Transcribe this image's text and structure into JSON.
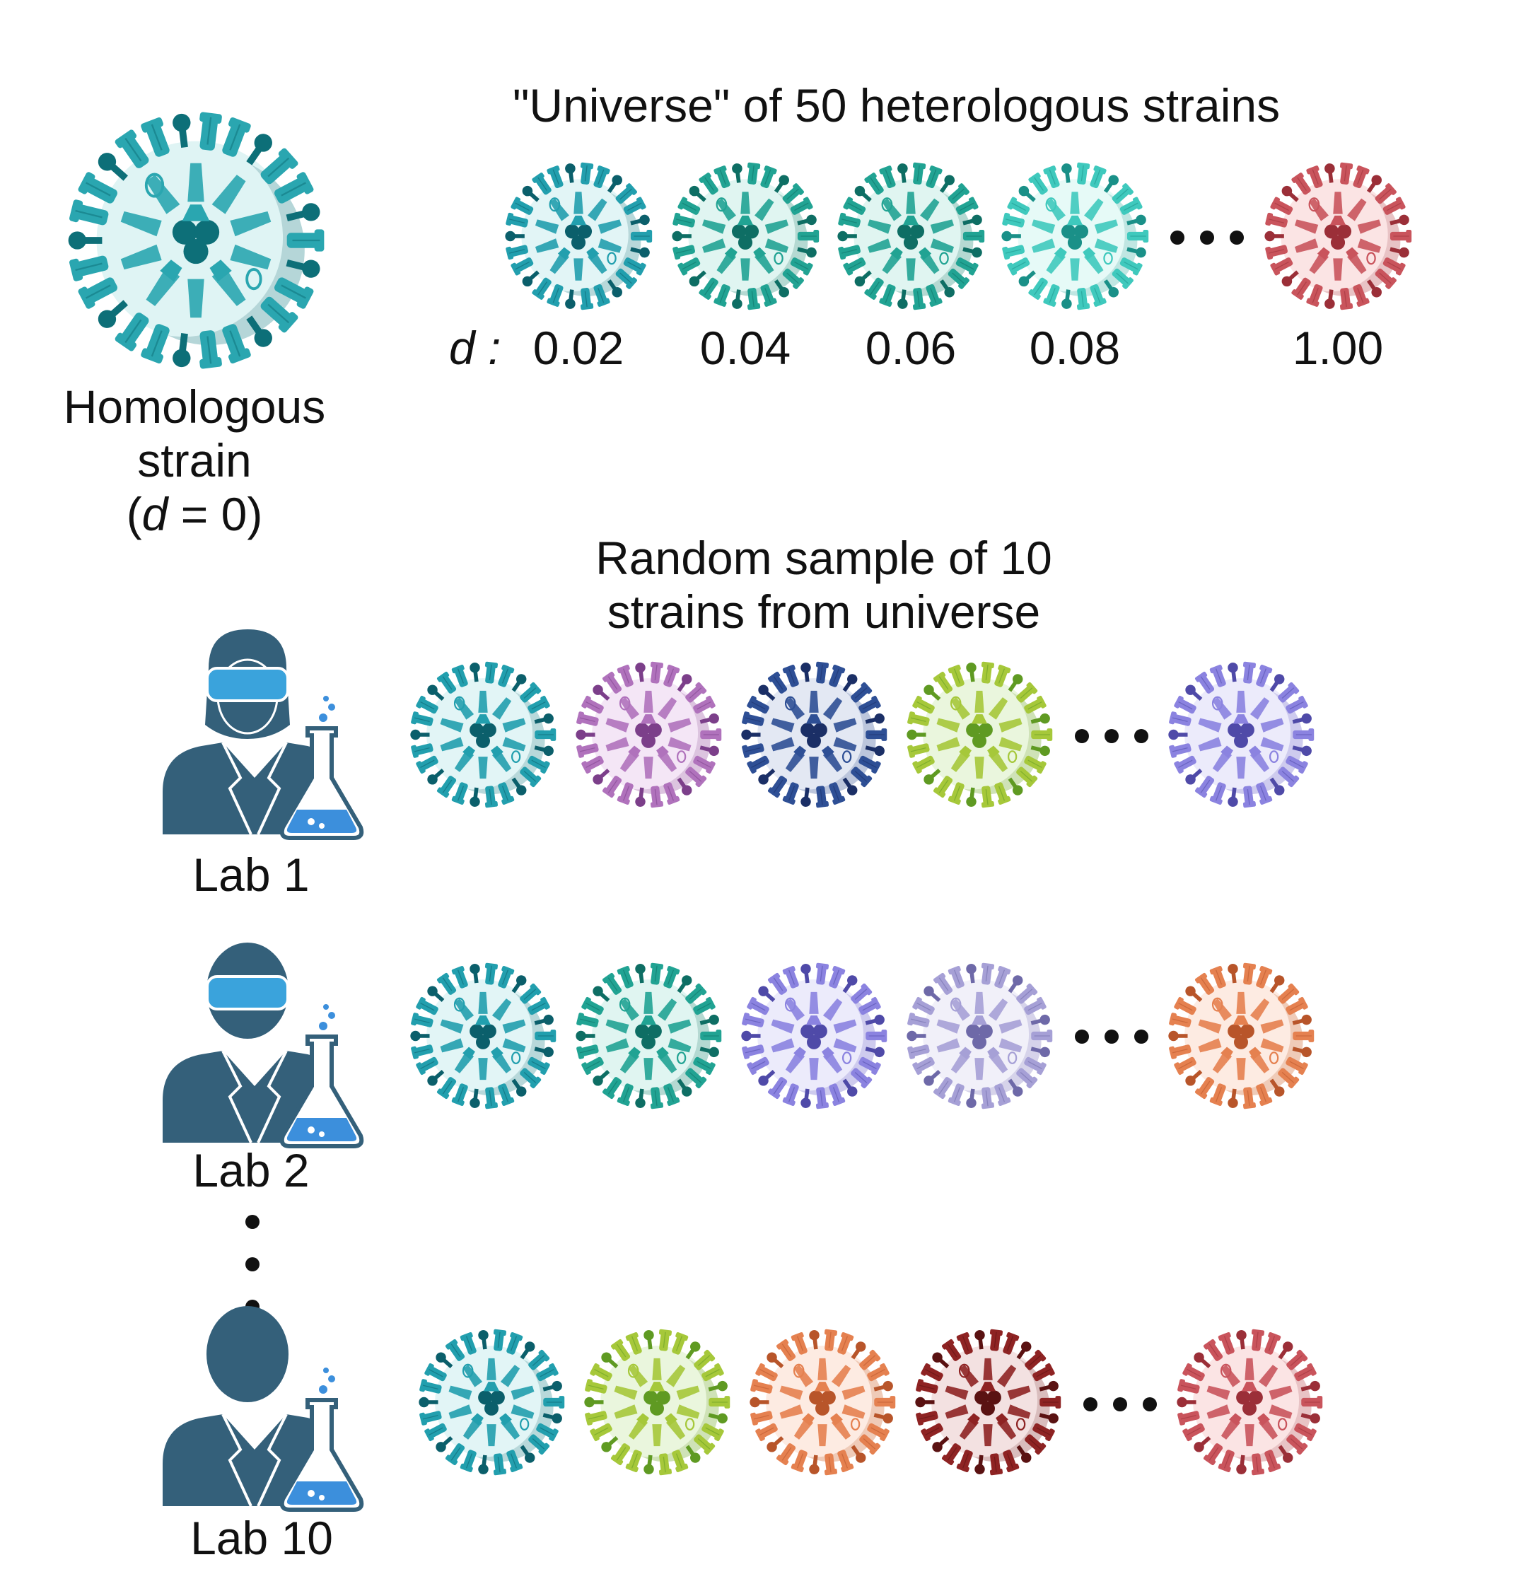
{
  "homologous": {
    "label_line1": "Homologous",
    "label_line2": "strain",
    "label_line3_open": "(",
    "label_line3_var": "d",
    "label_line3_rest": " = 0)",
    "color": "teal"
  },
  "universe": {
    "title": "\"Universe\" of 50 heterologous strains",
    "d_label": "d :",
    "strains": [
      {
        "d": "0.02",
        "color": "teal-dark"
      },
      {
        "d": "0.04",
        "color": "teal-mid"
      },
      {
        "d": "0.06",
        "color": "teal-mid"
      },
      {
        "d": "0.08",
        "color": "teal-light"
      },
      {
        "d": "1.00",
        "color": "red"
      }
    ]
  },
  "sample": {
    "title_line1": "Random sample of 10",
    "title_line2": "strains from universe"
  },
  "labs": [
    {
      "label": "Lab 1",
      "avatar": "scientist-female-goggles-icon",
      "strains": [
        "teal-dark",
        "purple",
        "navy",
        "lime",
        "lavender"
      ]
    },
    {
      "label": "Lab 2",
      "avatar": "scientist-male-goggles-icon",
      "strains": [
        "teal-dark",
        "teal-mid",
        "lavender",
        "lavender-light",
        "orange"
      ]
    },
    {
      "label": "Lab 10",
      "avatar": "scientist-plain-icon",
      "strains": [
        "teal-dark",
        "lime",
        "orange",
        "maroon",
        "red"
      ]
    }
  ],
  "palette": {
    "teal": {
      "spike": "#2aa6b0",
      "dark": "#0d6f78",
      "body": "#dff4f4",
      "shade": "#b5d6d8"
    },
    "teal-dark": {
      "spike": "#229fae",
      "dark": "#0b5f6b",
      "body": "#e2f5f6",
      "shade": "#b8d8da"
    },
    "teal-mid": {
      "spike": "#21a393",
      "dark": "#0e6e64",
      "body": "#e0f5f1",
      "shade": "#b5d9d2"
    },
    "teal-light": {
      "spike": "#3fc9bd",
      "dark": "#1a9088",
      "body": "#e6faf7",
      "shade": "#c0e6e2"
    },
    "red": {
      "spike": "#c9545c",
      "dark": "#9b2f38",
      "body": "#fbe4e4",
      "shade": "#e8c3c5"
    },
    "purple": {
      "spike": "#b072bc",
      "dark": "#7c3f8a",
      "body": "#f4e6f6",
      "shade": "#dcc4df"
    },
    "navy": {
      "spike": "#2e4f95",
      "dark": "#1b2f66",
      "body": "#e3e8f3",
      "shade": "#bcc6dc"
    },
    "lime": {
      "spike": "#a6c83a",
      "dark": "#5f9a22",
      "body": "#eaf6dd",
      "shade": "#cfe2b7"
    },
    "lavender": {
      "spike": "#8b83e0",
      "dark": "#4f4aa8",
      "body": "#ecebfb",
      "shade": "#cecbee"
    },
    "lavender-light": {
      "spike": "#a6a0d6",
      "dark": "#6e69a8",
      "body": "#f1f0f9",
      "shade": "#d6d3ea"
    },
    "orange": {
      "spike": "#e58150",
      "dark": "#b8552a",
      "body": "#fdebe2",
      "shade": "#efcbb8"
    },
    "maroon": {
      "spike": "#8e2323",
      "dark": "#5a1212",
      "body": "#f3e1e1",
      "shade": "#d9bdbd"
    }
  },
  "colors": {
    "scientist": "#34607a",
    "goggles": "#3aa3dc",
    "liquid": "#3c8fdc"
  }
}
